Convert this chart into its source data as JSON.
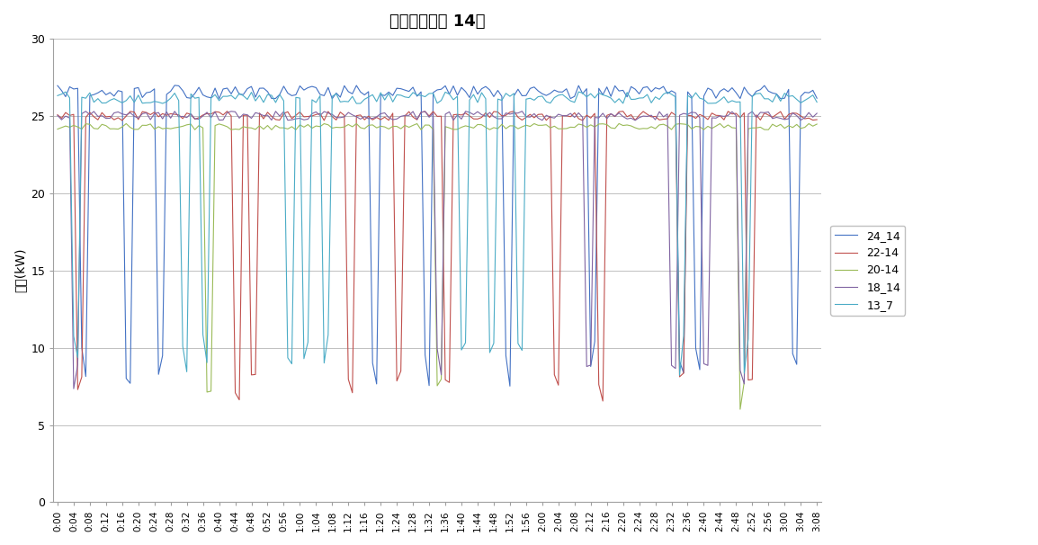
{
  "title": "낙수출수온도 14도",
  "ylabel": "전력(kW)",
  "ylim": [
    0,
    30
  ],
  "yticks": [
    0,
    5,
    10,
    15,
    20,
    25,
    30
  ],
  "series": [
    "24_14",
    "22-14",
    "20-14",
    "18_14",
    "13_7"
  ],
  "colors": [
    "#4472C4",
    "#C0504D",
    "#9BBB59",
    "#8064A2",
    "#4BACC6"
  ],
  "base_values": [
    26.5,
    25.0,
    24.3,
    25.0,
    26.2
  ],
  "drop_values": [
    9.0,
    7.5,
    7.0,
    8.5,
    9.5
  ],
  "n_points": 189,
  "background_color": "#FFFFFF",
  "grid_color": "#C0C0C0",
  "legend_labels": [
    "24_14",
    "22-14",
    "20-14",
    "18_14",
    "13_7"
  ]
}
